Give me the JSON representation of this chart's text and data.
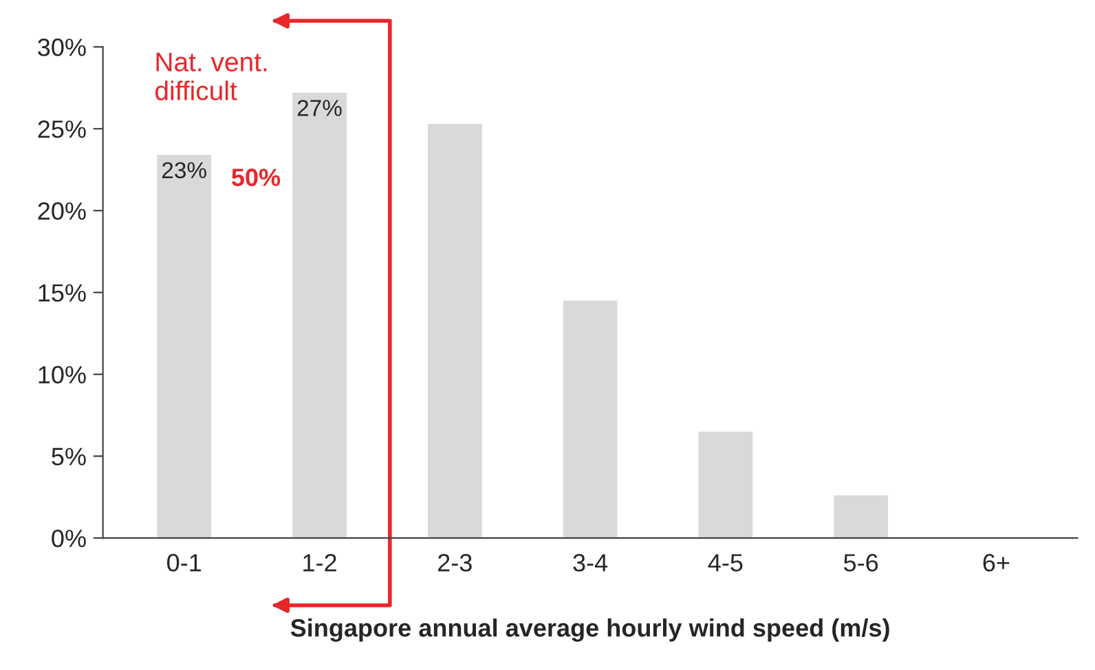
{
  "chart_data": {
    "type": "bar",
    "xlabel": "Singapore annual average hourly wind speed (m/s)",
    "categories": [
      "0-1",
      "1-2",
      "2-3",
      "3-4",
      "4-5",
      "5-6",
      "6+"
    ],
    "values": [
      23.4,
      27.2,
      25.3,
      14.5,
      6.5,
      2.6,
      0
    ],
    "value_labels": [
      "23%",
      "27%",
      null,
      null,
      null,
      null,
      null
    ],
    "color": "#d9d9d9",
    "ylim": [
      0,
      30
    ],
    "yticks": [
      {
        "value": 0,
        "label": "0%"
      },
      {
        "value": 5,
        "label": "5%"
      },
      {
        "value": 10,
        "label": "10%"
      },
      {
        "value": 15,
        "label": "15%"
      },
      {
        "value": 20,
        "label": "20%"
      },
      {
        "value": 25,
        "label": "25%"
      },
      {
        "value": 30,
        "label": "30%"
      }
    ],
    "annotations": [
      "Nat. vent.\ndifficult",
      "50%"
    ],
    "grid": false,
    "legend": false
  }
}
